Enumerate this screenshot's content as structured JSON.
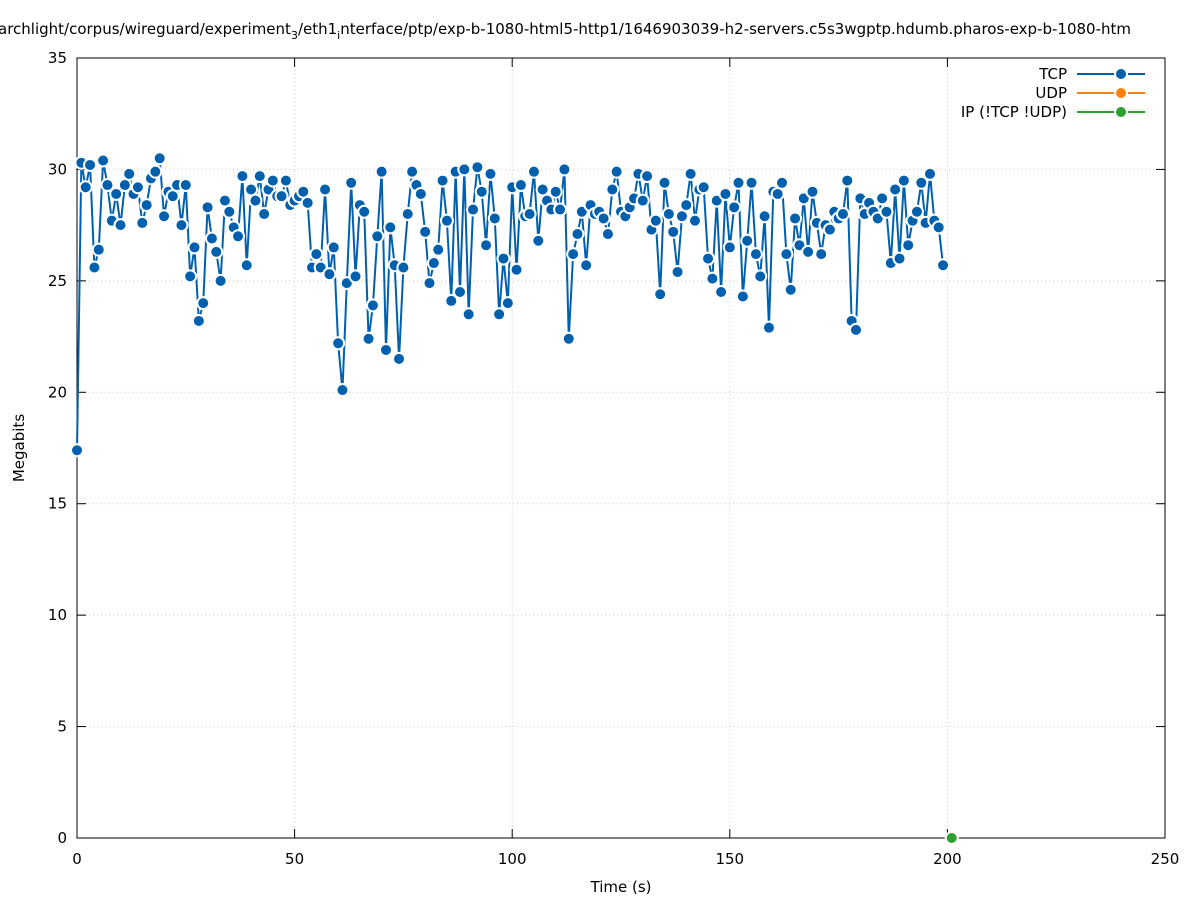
{
  "chart_data": {
    "type": "line",
    "title_parts": [
      "archlight/corpus/wireguard/experiment",
      "3",
      "/eth1",
      "i",
      "nterface/ptp/exp-b-1080-html5-http1/1646903039-h2-servers.c5s3wgptp.hdumb.pharos-exp-b-1080-htm"
    ],
    "xlabel": "Time (s)",
    "ylabel": "Megabits",
    "xlim": [
      0,
      250
    ],
    "xticks": [
      0,
      50,
      100,
      150,
      200,
      250
    ],
    "ylim": [
      0,
      35
    ],
    "yticks": [
      0,
      5,
      10,
      15,
      20,
      25,
      30,
      35
    ],
    "grid": true,
    "legend": "top-right",
    "series": [
      {
        "name": "TCP",
        "color": "#0060ad",
        "x": [
          0,
          1,
          2,
          3,
          4,
          5,
          6,
          7,
          8,
          9,
          10,
          11,
          12,
          13,
          14,
          15,
          16,
          17,
          18,
          19,
          20,
          21,
          22,
          23,
          24,
          25,
          26,
          27,
          28,
          29,
          30,
          31,
          32,
          33,
          34,
          35,
          36,
          37,
          38,
          39,
          40,
          41,
          42,
          43,
          44,
          45,
          46,
          47,
          48,
          49,
          50,
          51,
          52,
          53,
          54,
          55,
          56,
          57,
          58,
          59,
          60,
          61,
          62,
          63,
          64,
          65,
          66,
          67,
          68,
          69,
          70,
          71,
          72,
          73,
          74,
          75,
          76,
          77,
          78,
          79,
          80,
          81,
          82,
          83,
          84,
          85,
          86,
          87,
          88,
          89,
          90,
          91,
          92,
          93,
          94,
          95,
          96,
          97,
          98,
          99,
          100,
          101,
          102,
          103,
          104,
          105,
          106,
          107,
          108,
          109,
          110,
          111,
          112,
          113,
          114,
          115,
          116,
          117,
          118,
          119,
          120,
          121,
          122,
          123,
          124,
          125,
          126,
          127,
          128,
          129,
          130,
          131,
          132,
          133,
          134,
          135,
          136,
          137,
          138,
          139,
          140,
          141,
          142,
          143,
          144,
          145,
          146,
          147,
          148,
          149,
          150,
          151,
          152,
          153,
          154,
          155,
          156,
          157,
          158,
          159,
          160,
          161,
          162,
          163,
          164,
          165,
          166,
          167,
          168,
          169,
          170,
          171,
          172,
          173,
          174,
          175,
          176,
          177,
          178,
          179,
          180,
          181,
          182,
          183,
          184,
          185,
          186,
          187,
          188,
          189,
          190,
          191,
          192,
          193,
          194,
          195,
          196,
          197,
          198,
          199
        ],
        "values": [
          17.4,
          30.3,
          29.2,
          30.2,
          25.6,
          26.4,
          30.4,
          29.3,
          27.7,
          28.9,
          27.5,
          29.3,
          29.8,
          28.9,
          29.2,
          27.6,
          28.4,
          29.6,
          29.9,
          30.5,
          27.9,
          29.0,
          28.8,
          29.3,
          27.5,
          29.3,
          25.2,
          26.5,
          23.2,
          24.0,
          28.3,
          26.9,
          26.3,
          25.0,
          28.6,
          28.1,
          27.4,
          27.0,
          29.7,
          25.7,
          29.1,
          28.6,
          29.7,
          28.0,
          29.1,
          29.5,
          28.8,
          28.8,
          29.5,
          28.4,
          28.6,
          28.8,
          29.0,
          28.5,
          25.6,
          26.2,
          25.6,
          29.1,
          25.3,
          26.5,
          22.2,
          20.1,
          24.9,
          29.4,
          25.2,
          28.4,
          28.1,
          22.4,
          23.9,
          27.0,
          29.9,
          21.9,
          27.4,
          25.7,
          21.5,
          25.6,
          28.0,
          29.9,
          29.3,
          28.9,
          27.2,
          24.9,
          25.8,
          26.4,
          29.5,
          27.7,
          24.1,
          29.9,
          24.5,
          30.0,
          23.5,
          28.2,
          30.1,
          29.0,
          26.6,
          29.8,
          27.8,
          23.5,
          26.0,
          24.0,
          29.2,
          25.5,
          29.3,
          27.9,
          28.0,
          29.9,
          26.8,
          29.1,
          28.6,
          28.2,
          29.0,
          28.2,
          30.0,
          22.4,
          26.2,
          27.1,
          28.1,
          25.7,
          28.4,
          28.0,
          28.1,
          27.8,
          27.1,
          29.1,
          29.9,
          28.1,
          27.9,
          28.3,
          28.7,
          29.8,
          28.6,
          29.7,
          27.3,
          27.7,
          24.4,
          29.4,
          28.0,
          27.2,
          25.4,
          27.9,
          28.4,
          29.8,
          27.7,
          29.1,
          29.2,
          26.0,
          25.1,
          28.6,
          24.5,
          28.9,
          26.5,
          28.3,
          29.4,
          24.3,
          26.8,
          29.4,
          26.2,
          25.2,
          27.9,
          22.9,
          29.0,
          28.9,
          29.4,
          26.2,
          24.6,
          27.8,
          26.6,
          28.7,
          26.3,
          29.0,
          27.6,
          26.2,
          27.5,
          27.3,
          28.1,
          27.8,
          28.0,
          29.5,
          23.2,
          22.8,
          28.7,
          28.0,
          28.5,
          28.1,
          27.8,
          28.7,
          28.1,
          25.8,
          29.1,
          26.0,
          29.5,
          26.6,
          27.7,
          28.1,
          29.4,
          27.6,
          29.8,
          27.7,
          27.4,
          25.7
        ]
      },
      {
        "name": "UDP",
        "color": "#ff7f0e",
        "x": [],
        "values": []
      },
      {
        "name": "IP (!TCP  !UDP)",
        "color": "#2ca02c",
        "x": [
          201
        ],
        "values": [
          0
        ]
      }
    ]
  }
}
